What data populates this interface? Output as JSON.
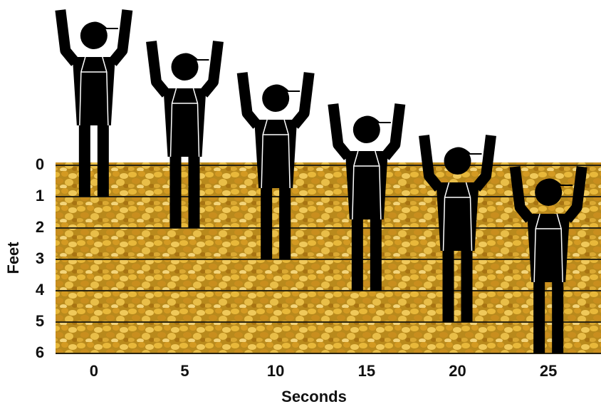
{
  "chart_data": {
    "type": "pictogram",
    "x_label": "Seconds",
    "y_label": "Feet",
    "categories": [
      "0",
      "5",
      "10",
      "15",
      "20",
      "25"
    ],
    "values": [
      1,
      2,
      3,
      4,
      5,
      6
    ],
    "ylim": [
      0,
      6
    ],
    "yticks": [
      0,
      1,
      2,
      3,
      4,
      5,
      6
    ],
    "grid": true,
    "y_inverted": true,
    "color": "#000000"
  }
}
